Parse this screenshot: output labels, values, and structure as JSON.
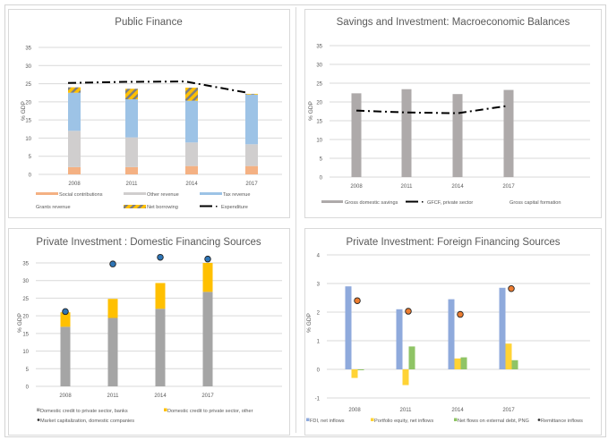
{
  "chart_data": [
    {
      "id": "public-finance",
      "type": "bar",
      "stacked": true,
      "title": "Public Finance",
      "xlabel": "",
      "ylabel": "% GDP",
      "ylim": [
        0,
        35
      ],
      "yticks": [
        0,
        5,
        10,
        15,
        20,
        25,
        30,
        35
      ],
      "grid": true,
      "legend_position": "bottom",
      "categories": [
        "2008",
        "2011",
        "2014",
        "2017"
      ],
      "series": [
        {
          "name": "Social contributions",
          "kind": "bar",
          "color": "#f4b183",
          "values": [
            2.0,
            2.0,
            2.3,
            2.3
          ]
        },
        {
          "name": "Other revenue",
          "kind": "bar",
          "color": "#d0cece",
          "values": [
            10.0,
            8.2,
            6.5,
            6.0
          ]
        },
        {
          "name": "Tax revenue",
          "kind": "bar",
          "color": "#9dc3e6",
          "values": [
            10.5,
            10.5,
            11.5,
            13.7
          ]
        },
        {
          "name": "Grants revenue",
          "kind": "bar",
          "color": "#ffffff",
          "values": [
            0,
            0,
            0,
            0
          ]
        },
        {
          "name": "Net borrowing",
          "kind": "bar",
          "pattern": "hatch",
          "color": "#ffc000",
          "values": [
            1.5,
            2.9,
            3.6,
            0.2
          ]
        },
        {
          "name": "Expenditure",
          "kind": "line",
          "style": "dash-dot",
          "color": "#000000",
          "values": [
            25.2,
            25.5,
            25.6,
            22.6
          ]
        }
      ]
    },
    {
      "id": "savings-investment",
      "type": "bar",
      "title": "Savings and Investment: Macroeconomic Balances",
      "xlabel": "",
      "ylabel": "% GDP",
      "ylim": [
        0,
        35
      ],
      "yticks": [
        0,
        5,
        10,
        15,
        20,
        25,
        30,
        35
      ],
      "grid": true,
      "legend_position": "bottom",
      "categories": [
        "2008",
        "2011",
        "2014",
        "2017"
      ],
      "series": [
        {
          "name": "Gross domestic savings",
          "kind": "bar",
          "color": "#aeaaaa",
          "values": [
            22.3,
            23.4,
            22.1,
            23.2
          ]
        },
        {
          "name": "GFCF, private sector",
          "kind": "line",
          "style": "dash-dot",
          "color": "#000000",
          "values": [
            17.7,
            17.2,
            17.0,
            19.0
          ]
        },
        {
          "name": "Gross capital formation",
          "kind": "line",
          "color": "#ffffff",
          "values": []
        }
      ]
    },
    {
      "id": "domestic-financing",
      "type": "bar",
      "stacked": true,
      "title": "Private Investment : Domestic Financing Sources",
      "xlabel": "",
      "ylabel": "% GDP",
      "ylim": [
        0,
        35
      ],
      "yticks": [
        0,
        5,
        10,
        15,
        20,
        25,
        30,
        35
      ],
      "grid": true,
      "legend_position": "bottom",
      "categories": [
        "2008",
        "2011",
        "2014",
        "2017"
      ],
      "series": [
        {
          "name": "Domestic credit to private sector, banks",
          "kind": "bar",
          "color": "#a5a5a5",
          "values": [
            16.9,
            19.4,
            22.0,
            26.8
          ]
        },
        {
          "name": "Domestic credit to private sector, other",
          "kind": "bar",
          "color": "#ffc000",
          "values": [
            4.1,
            5.4,
            7.3,
            8.2
          ]
        },
        {
          "name": "Market capitalization, domestic companies",
          "kind": "scatter",
          "color": "#2e75b6",
          "values": [
            21.2,
            34.7,
            36.6,
            36.1
          ]
        }
      ]
    },
    {
      "id": "foreign-financing",
      "type": "bar",
      "title": "Private Investment: Foreign Financing Sources",
      "xlabel": "",
      "ylabel": "% GDP",
      "ylim": [
        -1,
        4
      ],
      "yticks": [
        -1,
        0,
        1,
        2,
        3,
        4
      ],
      "grid": true,
      "legend_position": "bottom",
      "categories": [
        "2008",
        "2011",
        "2014",
        "2017"
      ],
      "series": [
        {
          "name": "FDI, net inflows",
          "kind": "bar",
          "color": "#8faadc",
          "values": [
            2.9,
            2.1,
            2.45,
            2.85
          ]
        },
        {
          "name": "Portfolio equity, net inflows",
          "kind": "bar",
          "color": "#ffd335",
          "values": [
            -0.3,
            -0.55,
            0.38,
            0.9
          ]
        },
        {
          "name": "Net flows on external debt, PNG",
          "kind": "bar",
          "color": "#8fc466",
          "values": [
            -0.03,
            0.8,
            0.42,
            0.32
          ]
        },
        {
          "name": "Remittance inflows",
          "kind": "scatter",
          "color": "#ed7d31",
          "values": [
            2.4,
            2.03,
            1.92,
            2.82
          ]
        }
      ]
    }
  ]
}
